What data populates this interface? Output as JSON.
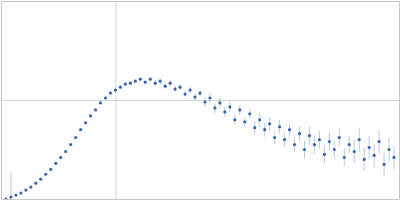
{
  "chart_data": {
    "type": "scatter",
    "xlim": [
      0,
      4
    ],
    "xticks": [
      1.15
    ],
    "ylim": [
      0,
      2
    ],
    "yticks": [
      1
    ],
    "grid": true,
    "tick_labels": false,
    "series": [
      {
        "color": "#3a67b5",
        "marker": "circle",
        "x": [
          0.05,
          0.1,
          0.15,
          0.2,
          0.25,
          0.3,
          0.35,
          0.4,
          0.45,
          0.5,
          0.55,
          0.6,
          0.65,
          0.7,
          0.75,
          0.8,
          0.85,
          0.9,
          0.95,
          1.0,
          1.05,
          1.1,
          1.15,
          1.2,
          1.25,
          1.3,
          1.35,
          1.4,
          1.45,
          1.5,
          1.55,
          1.6,
          1.65,
          1.7,
          1.75,
          1.8,
          1.85,
          1.9,
          1.95,
          2.0,
          2.05,
          2.1,
          2.15,
          2.2,
          2.25,
          2.3,
          2.35,
          2.4,
          2.45,
          2.5,
          2.55,
          2.6,
          2.65,
          2.7,
          2.75,
          2.8,
          2.85,
          2.9,
          2.95,
          3.0,
          3.05,
          3.1,
          3.15,
          3.2,
          3.25,
          3.3,
          3.35,
          3.4,
          3.45,
          3.5,
          3.55,
          3.6,
          3.65,
          3.7,
          3.75,
          3.8,
          3.85,
          3.9,
          3.95
        ],
        "values": [
          0.0,
          0.02,
          0.04,
          0.06,
          0.09,
          0.12,
          0.16,
          0.2,
          0.25,
          0.3,
          0.36,
          0.42,
          0.48,
          0.55,
          0.62,
          0.7,
          0.77,
          0.84,
          0.9,
          0.97,
          1.02,
          1.07,
          1.1,
          1.13,
          1.16,
          1.17,
          1.19,
          1.21,
          1.18,
          1.21,
          1.17,
          1.19,
          1.14,
          1.17,
          1.11,
          1.13,
          1.06,
          1.1,
          1.03,
          1.07,
          0.98,
          1.02,
          0.92,
          0.97,
          0.88,
          0.93,
          0.8,
          0.9,
          0.78,
          0.86,
          0.72,
          0.8,
          0.7,
          0.76,
          0.62,
          0.73,
          0.6,
          0.7,
          0.55,
          0.66,
          0.5,
          0.64,
          0.55,
          0.6,
          0.45,
          0.58,
          0.5,
          0.62,
          0.42,
          0.55,
          0.48,
          0.6,
          0.4,
          0.52,
          0.44,
          0.58,
          0.35,
          0.5,
          0.42
        ],
        "errors": [
          0.005,
          0.25,
          0.01,
          0.01,
          0.01,
          0.01,
          0.01,
          0.01,
          0.01,
          0.01,
          0.01,
          0.01,
          0.01,
          0.01,
          0.01,
          0.01,
          0.01,
          0.01,
          0.01,
          0.01,
          0.015,
          0.015,
          0.015,
          0.015,
          0.015,
          0.015,
          0.015,
          0.015,
          0.015,
          0.015,
          0.03,
          0.03,
          0.03,
          0.03,
          0.03,
          0.03,
          0.03,
          0.03,
          0.03,
          0.03,
          0.05,
          0.05,
          0.05,
          0.05,
          0.05,
          0.05,
          0.05,
          0.05,
          0.05,
          0.05,
          0.07,
          0.07,
          0.07,
          0.07,
          0.07,
          0.07,
          0.07,
          0.07,
          0.07,
          0.07,
          0.09,
          0.09,
          0.09,
          0.09,
          0.09,
          0.09,
          0.09,
          0.09,
          0.09,
          0.09,
          0.12,
          0.12,
          0.12,
          0.12,
          0.12,
          0.12,
          0.12,
          0.12,
          0.12
        ]
      }
    ]
  }
}
